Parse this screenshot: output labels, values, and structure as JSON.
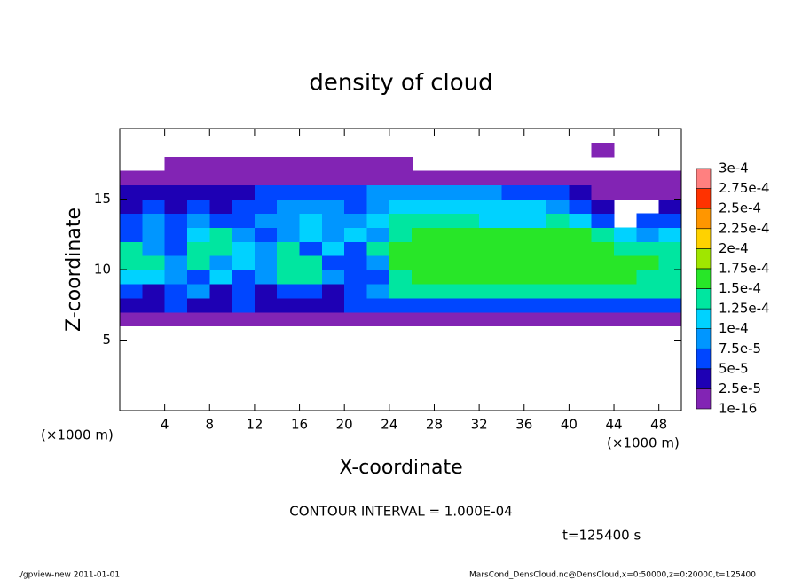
{
  "chart_data": {
    "type": "contour-fill",
    "title": "density of cloud",
    "x_label": "X-coordinate",
    "y_label": "Z-coordinate",
    "x_unit_label": "(×1000 m)",
    "y_unit_label": "(×1000 m)",
    "contour_note": "CONTOUR INTERVAL = 1.000E-04",
    "time_label": "t=125400 s",
    "footer_left": "./gpview-new  2011-01-01",
    "footer_right": "MarsCond_DensCloud.nc@DensCloud,x=0:50000,z=0:20000,t=125400",
    "xlim": [
      0,
      50
    ],
    "ylim": [
      0,
      20
    ],
    "xticks": [
      4,
      8,
      12,
      16,
      20,
      24,
      28,
      32,
      36,
      40,
      44,
      48
    ],
    "yticks": [
      5,
      10,
      15
    ],
    "x_edges": [
      0,
      2,
      4,
      6,
      8,
      10,
      12,
      14,
      16,
      18,
      20,
      22,
      24,
      26,
      28,
      30,
      32,
      34,
      36,
      38,
      40,
      42,
      44,
      46,
      48,
      50
    ],
    "z_edges": [
      5,
      6,
      7,
      8,
      9,
      10,
      11,
      12,
      13,
      14,
      15,
      16,
      17,
      18,
      19
    ],
    "values": [
      [
        null,
        null,
        null,
        null,
        null,
        null,
        null,
        null,
        null,
        null,
        null,
        null,
        null,
        null,
        null,
        null,
        null,
        null,
        null,
        null,
        null,
        null,
        null,
        null,
        null
      ],
      [
        5e-06,
        5e-06,
        5e-06,
        5e-06,
        5e-06,
        5e-06,
        5e-06,
        5e-06,
        5e-06,
        5e-06,
        5e-06,
        5e-06,
        5e-06,
        5e-06,
        5e-06,
        5e-06,
        5e-06,
        5e-06,
        5e-06,
        5e-06,
        5e-06,
        5e-06,
        5e-06,
        5e-06,
        5e-06
      ],
      [
        3.5e-05,
        3.5e-05,
        6e-05,
        3.5e-05,
        3.5e-05,
        6e-05,
        3.5e-05,
        3.5e-05,
        3.5e-05,
        3.5e-05,
        6e-05,
        6e-05,
        6e-05,
        6e-05,
        6e-05,
        6e-05,
        6e-05,
        6e-05,
        6e-05,
        6e-05,
        6e-05,
        6e-05,
        6e-05,
        6e-05,
        6e-05
      ],
      [
        6e-05,
        3.5e-05,
        6e-05,
        8.5e-05,
        3.5e-05,
        6e-05,
        3.5e-05,
        6e-05,
        6e-05,
        3.5e-05,
        6e-05,
        8.5e-05,
        0.000135,
        0.000135,
        0.000135,
        0.000135,
        0.000135,
        0.000135,
        0.000135,
        0.000135,
        0.000135,
        0.000135,
        0.000135,
        0.000135,
        0.000135
      ],
      [
        0.00011,
        0.00011,
        8.5e-05,
        6e-05,
        0.00011,
        6e-05,
        8.5e-05,
        0.000135,
        0.000135,
        8.5e-05,
        6e-05,
        6e-05,
        0.000135,
        0.00016,
        0.00016,
        0.00016,
        0.00016,
        0.00016,
        0.00016,
        0.00016,
        0.00016,
        0.00016,
        0.00016,
        0.000135,
        0.000135
      ],
      [
        0.000135,
        0.000135,
        8.5e-05,
        0.000135,
        8.5e-05,
        0.00011,
        8.5e-05,
        0.000135,
        0.000135,
        6e-05,
        6e-05,
        8.5e-05,
        0.00016,
        0.00016,
        0.00016,
        0.00016,
        0.00016,
        0.00016,
        0.00016,
        0.00016,
        0.00016,
        0.00016,
        0.00016,
        0.00016,
        0.000135
      ],
      [
        0.000135,
        8.5e-05,
        6e-05,
        0.000135,
        0.000135,
        0.00011,
        8.5e-05,
        0.000135,
        6e-05,
        0.00011,
        6e-05,
        0.000135,
        0.00016,
        0.00016,
        0.00016,
        0.00016,
        0.00016,
        0.00016,
        0.00016,
        0.00016,
        0.00016,
        0.00016,
        0.000135,
        0.000135,
        0.000135
      ],
      [
        6e-05,
        8.5e-05,
        6e-05,
        0.00011,
        0.000135,
        8.5e-05,
        6e-05,
        8.5e-05,
        0.00011,
        8.5e-05,
        0.00011,
        8.5e-05,
        0.000135,
        0.00016,
        0.00016,
        0.00016,
        0.00016,
        0.00016,
        0.00016,
        0.00016,
        0.00016,
        0.000135,
        0.00011,
        8.5e-05,
        0.00011
      ],
      [
        6e-05,
        8.5e-05,
        6e-05,
        8.5e-05,
        6e-05,
        6e-05,
        8.5e-05,
        8.5e-05,
        0.00011,
        8.5e-05,
        8.5e-05,
        0.00011,
        0.000135,
        0.000135,
        0.000135,
        0.000135,
        0.00011,
        0.00011,
        0.00011,
        0.000135,
        0.00011,
        6e-05,
        null,
        6e-05,
        6e-05
      ],
      [
        3.5e-05,
        6e-05,
        3.5e-05,
        6e-05,
        3.5e-05,
        6e-05,
        6e-05,
        8.5e-05,
        8.5e-05,
        8.5e-05,
        6e-05,
        8.5e-05,
        0.00011,
        0.00011,
        0.00011,
        0.00011,
        0.00011,
        0.00011,
        0.00011,
        8.5e-05,
        6e-05,
        3.5e-05,
        null,
        null,
        3.5e-05
      ],
      [
        3.5e-05,
        3.5e-05,
        3.5e-05,
        3.5e-05,
        3.5e-05,
        3.5e-05,
        6e-05,
        6e-05,
        6e-05,
        6e-05,
        6e-05,
        8.5e-05,
        8.5e-05,
        8.5e-05,
        8.5e-05,
        8.5e-05,
        8.5e-05,
        6e-05,
        6e-05,
        6e-05,
        3.5e-05,
        5e-06,
        5e-06,
        5e-06,
        5e-06
      ],
      [
        5e-06,
        5e-06,
        5e-06,
        5e-06,
        5e-06,
        5e-06,
        5e-06,
        5e-06,
        5e-06,
        5e-06,
        5e-06,
        5e-06,
        5e-06,
        5e-06,
        5e-06,
        5e-06,
        5e-06,
        5e-06,
        5e-06,
        5e-06,
        5e-06,
        5e-06,
        5e-06,
        5e-06,
        5e-06
      ],
      [
        null,
        null,
        5e-06,
        5e-06,
        5e-06,
        5e-06,
        5e-06,
        5e-06,
        5e-06,
        5e-06,
        5e-06,
        5e-06,
        5e-06,
        null,
        null,
        null,
        null,
        null,
        null,
        null,
        null,
        null,
        null,
        null,
        null
      ],
      [
        null,
        null,
        null,
        null,
        null,
        null,
        null,
        null,
        null,
        null,
        null,
        null,
        null,
        null,
        null,
        null,
        null,
        null,
        null,
        null,
        null,
        5e-06,
        null,
        null,
        null
      ]
    ],
    "levels": [
      {
        "value": 1e-16,
        "label": "1e-16"
      },
      {
        "value": 2.5e-05,
        "label": "2.5e-5"
      },
      {
        "value": 5e-05,
        "label": "5e-5"
      },
      {
        "value": 7.5e-05,
        "label": "7.5e-5"
      },
      {
        "value": 0.0001,
        "label": "1e-4"
      },
      {
        "value": 0.000125,
        "label": "1.25e-4"
      },
      {
        "value": 0.00015,
        "label": "1.5e-4"
      },
      {
        "value": 0.000175,
        "label": "1.75e-4"
      },
      {
        "value": 0.0002,
        "label": "2e-4"
      },
      {
        "value": 0.000225,
        "label": "2.25e-4"
      },
      {
        "value": 0.00025,
        "label": "2.5e-4"
      },
      {
        "value": 0.000275,
        "label": "2.75e-4"
      },
      {
        "value": 0.0003,
        "label": "3e-4"
      }
    ],
    "colors": [
      "#8224b4",
      "#1e00b4",
      "#0046ff",
      "#0096ff",
      "#00d2ff",
      "#00e6a0",
      "#28e628",
      "#a0e600",
      "#ffd200",
      "#ff9600",
      "#ff3200",
      "#ff8080"
    ]
  }
}
